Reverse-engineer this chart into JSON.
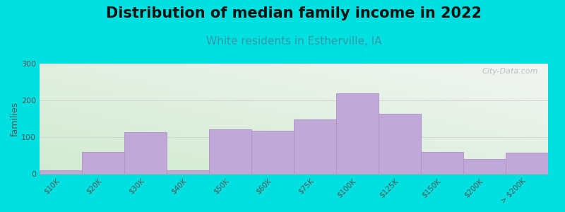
{
  "title": "Distribution of median family income in 2022",
  "subtitle": "White residents in Estherville, IA",
  "ylabel": "families",
  "categories": [
    "$10K",
    "$20K",
    "$30K",
    "$40K",
    "$50K",
    "$60K",
    "$75K",
    "$100K",
    "$125K",
    "$150K",
    "$200K",
    "> $200K"
  ],
  "values": [
    10,
    60,
    113,
    10,
    122,
    118,
    148,
    220,
    163,
    60,
    40,
    57
  ],
  "bar_color": "#c0a8d8",
  "bar_edge_color": "#b090c8",
  "ylim": [
    0,
    300
  ],
  "yticks": [
    0,
    100,
    200,
    300
  ],
  "bg_left_color": "#c8e8c8",
  "bg_right_color": "#f0f0e8",
  "bg_top_color": "#f8f8f4",
  "outer_bg": "#00e0e0",
  "title_fontsize": 15,
  "subtitle_fontsize": 11,
  "subtitle_color": "#3399aa",
  "watermark": "City-Data.com"
}
